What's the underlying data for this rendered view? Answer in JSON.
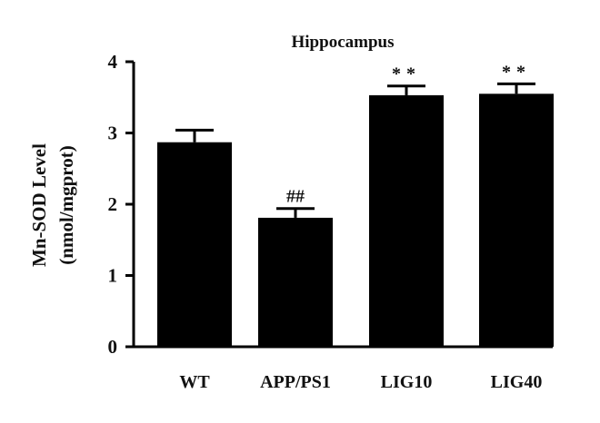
{
  "chart_data": {
    "type": "bar",
    "title": "Hippocampus",
    "ylabel_lines": [
      "Mn-SOD Level",
      "(nmol/mgprot)"
    ],
    "xlabel": "",
    "categories": [
      "WT",
      "APP/PS1",
      "LIG10",
      "LIG40"
    ],
    "values": [
      2.87,
      1.81,
      3.53,
      3.55
    ],
    "errors": [
      0.17,
      0.13,
      0.13,
      0.14
    ],
    "annotations": [
      "",
      "##",
      "**",
      "**"
    ],
    "ylim": [
      0,
      4
    ],
    "yticks": [
      0,
      1,
      2,
      3,
      4
    ],
    "grid": false,
    "legend": "none",
    "bar_color": "#000000"
  }
}
